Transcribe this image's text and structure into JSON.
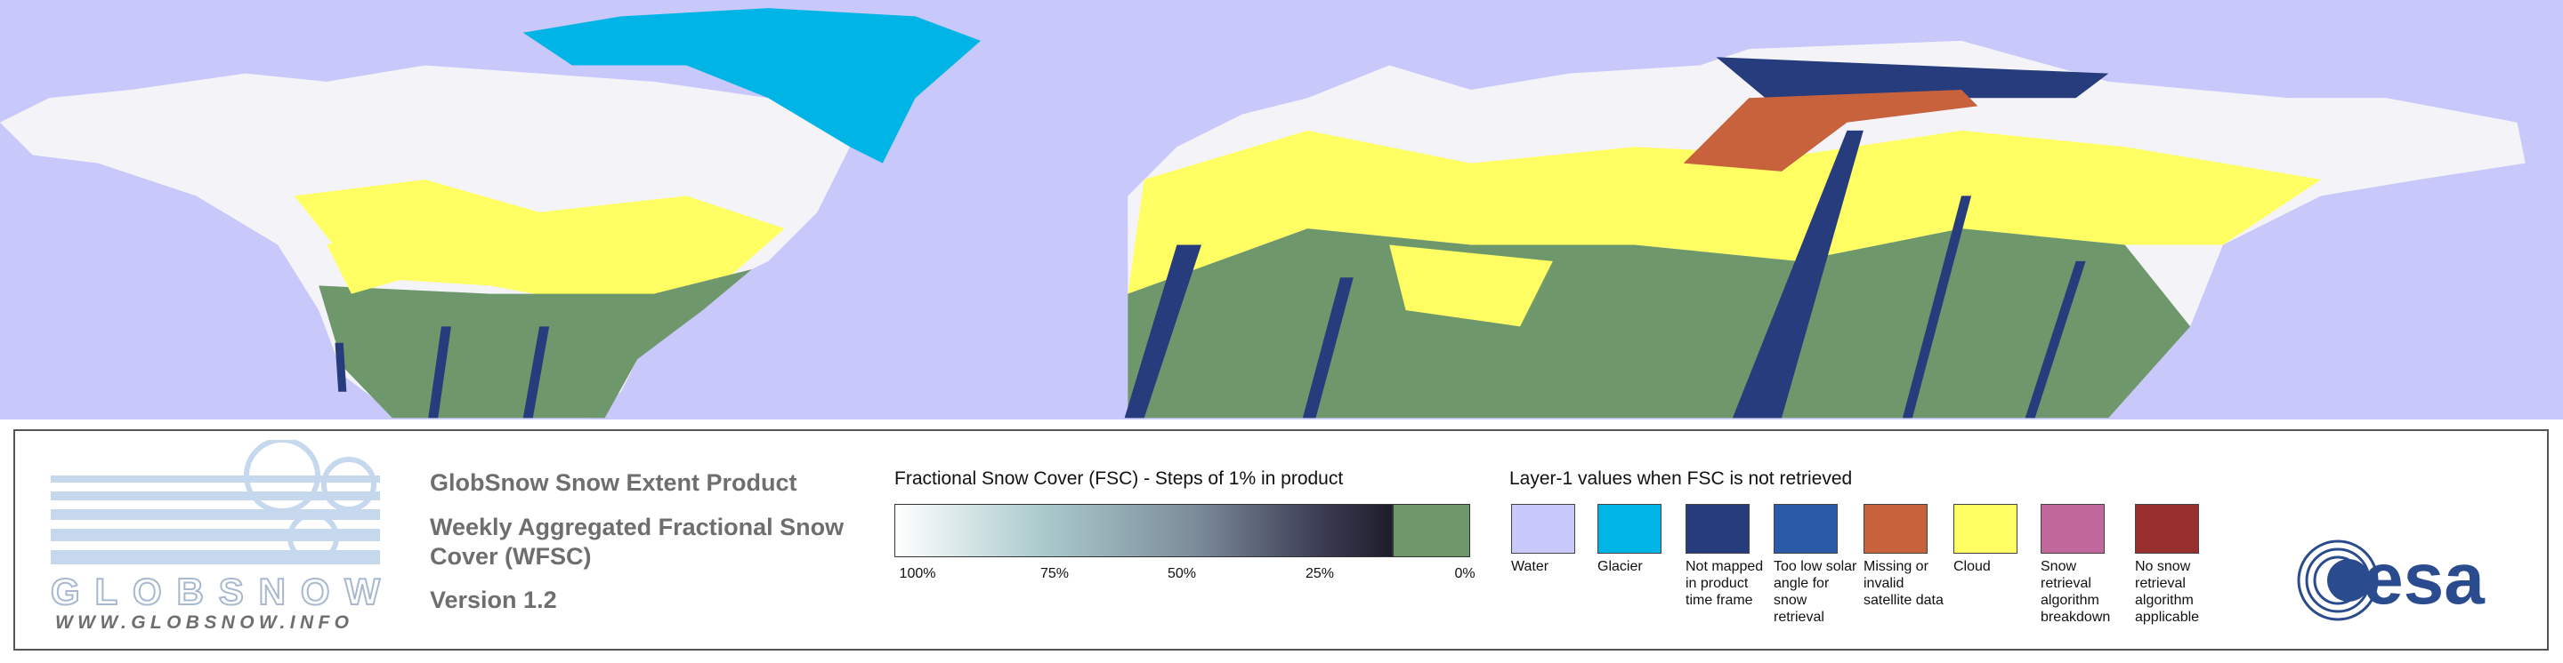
{
  "logo": {
    "name": "GLOBSNOW",
    "url": "WWW.GLOBSNOW.INFO"
  },
  "product": {
    "title": "GlobSnow Snow Extent Product",
    "subtitle": "Weekly Aggregated Fractional Snow Cover (WFSC)",
    "version": "Version 1.2"
  },
  "fsc_scale": {
    "title": "Fractional Snow Cover (FSC) - Steps of 1% in product",
    "ticks": [
      "100%",
      "75%",
      "50%",
      "25%",
      "0%"
    ]
  },
  "layer1": {
    "title": "Layer-1 values when FSC is not retrieved",
    "classes": [
      {
        "label": "Water",
        "color": "#c8c8fa"
      },
      {
        "label": "Glacier",
        "color": "#00b4e6"
      },
      {
        "label": "Not mapped in product time frame",
        "color": "#273c7c"
      },
      {
        "label": "Too low solar angle for snow retrieval",
        "color": "#2a5aa8"
      },
      {
        "label": "Missing or invalid satellite data",
        "color": "#c8623c"
      },
      {
        "label": "Cloud",
        "color": "#ffff64"
      },
      {
        "label": "Snow retrieval algorithm breakdown",
        "color": "#c0689c"
      },
      {
        "label": "No snow retrieval algorithm applicable",
        "color": "#983030"
      }
    ]
  },
  "esa": "esa"
}
